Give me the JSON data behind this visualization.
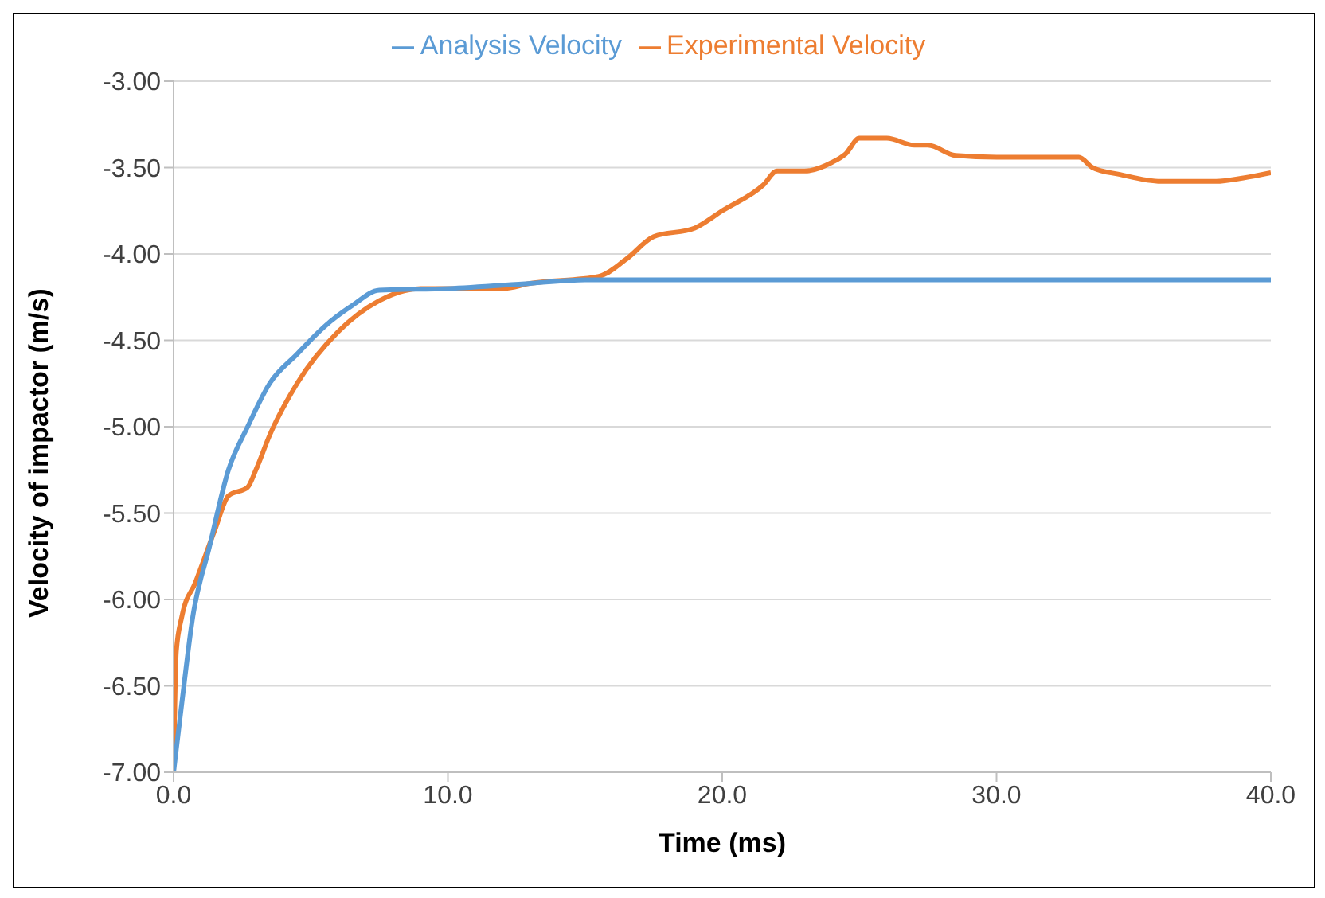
{
  "chart_data": {
    "type": "line",
    "xlabel": "Time (ms)",
    "ylabel": "Velocity of impactor  (m/s)",
    "xlim": [
      0,
      40
    ],
    "xticks": [
      {
        "value": 0,
        "label": "0.0"
      },
      {
        "value": 10,
        "label": "10.0"
      },
      {
        "value": 20,
        "label": "20.0"
      },
      {
        "value": 30,
        "label": "30.0"
      },
      {
        "value": 40,
        "label": "40.0"
      }
    ],
    "ylim": [
      -7,
      -3
    ],
    "yticks": [
      {
        "value": -7,
        "label": "-7.00"
      },
      {
        "value": -6.5,
        "label": "-6.50"
      },
      {
        "value": -6,
        "label": "-6.00"
      },
      {
        "value": -5.5,
        "label": "-5.50"
      },
      {
        "value": -5,
        "label": "-5.00"
      },
      {
        "value": -4.5,
        "label": "-4.50"
      },
      {
        "value": -4,
        "label": "-4.00"
      },
      {
        "value": -3.5,
        "label": "-3.50"
      },
      {
        "value": -3,
        "label": "-3.00"
      }
    ],
    "grid": "y",
    "legend": "top",
    "marker": "none",
    "line_style": "solid",
    "series": [
      {
        "name": "Experimental Velocity",
        "color": "#ed7d31",
        "x": [
          0,
          0.1,
          0.3,
          0.8,
          1.5,
          2,
          2.7,
          3,
          3.5,
          4.5,
          6,
          7.5,
          9,
          12,
          13,
          15.5,
          16.5,
          17.5,
          19,
          20,
          21.5,
          22,
          23,
          24,
          24.5,
          25,
          26,
          27,
          27.5,
          28.5,
          30,
          33,
          33.5,
          34.5,
          36,
          38,
          39,
          40
        ],
        "values": [
          -7,
          -6.3,
          -6.1,
          -5.9,
          -5.6,
          -5.4,
          -5.35,
          -5.25,
          -5.05,
          -4.75,
          -4.45,
          -4.27,
          -4.2,
          -4.2,
          -4.17,
          -4.13,
          -4.03,
          -3.9,
          -3.85,
          -3.75,
          -3.6,
          -3.52,
          -3.52,
          -3.47,
          -3.42,
          -3.33,
          -3.33,
          -3.37,
          -3.37,
          -3.43,
          -3.44,
          -3.44,
          -3.5,
          -3.54,
          -3.58,
          -3.58,
          -3.56,
          -3.53
        ]
      },
      {
        "name": "Analysis Velocity",
        "color": "#5b9bd5",
        "x": [
          0,
          0.3,
          0.7,
          1.3,
          2,
          2.7,
          3.5,
          4.5,
          5.5,
          6.5,
          7.5,
          10,
          13,
          15,
          40
        ],
        "values": [
          -7,
          -6.6,
          -6.1,
          -5.7,
          -5.25,
          -5,
          -4.75,
          -4.58,
          -4.42,
          -4.3,
          -4.21,
          -4.2,
          -4.17,
          -4.15,
          -4.15
        ]
      }
    ]
  }
}
